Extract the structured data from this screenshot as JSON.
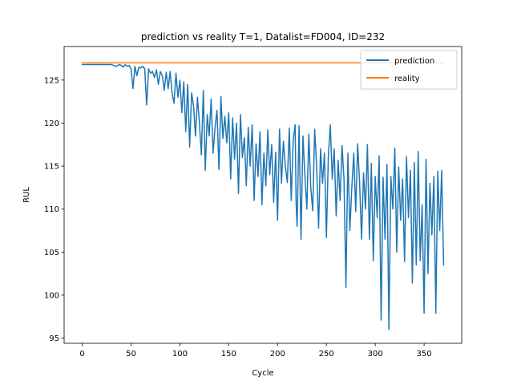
{
  "chart_data": {
    "type": "line",
    "title": "prediction vs reality T=1, Datalist=FD004, ID=232",
    "xlabel": "Cycle",
    "ylabel": "RUL",
    "xlim": [
      -18.5,
      388.5
    ],
    "ylim": [
      94.4,
      128.9
    ],
    "x_ticks": [
      0,
      50,
      100,
      150,
      200,
      250,
      300,
      350
    ],
    "y_ticks": [
      95,
      100,
      105,
      110,
      115,
      120,
      125
    ],
    "grid": false,
    "legend_position": "top-right",
    "series": [
      {
        "name": "prediction",
        "color": "#1f77b4",
        "x": [
          0,
          5,
          10,
          15,
          20,
          25,
          30,
          35,
          38,
          40,
          42,
          44,
          46,
          48,
          50,
          52,
          54,
          56,
          58,
          60,
          62,
          64,
          66,
          68,
          70,
          72,
          74,
          76,
          78,
          80,
          82,
          84,
          86,
          88,
          90,
          92,
          94,
          96,
          98,
          100,
          102,
          104,
          106,
          108,
          110,
          112,
          114,
          116,
          118,
          120,
          122,
          124,
          126,
          128,
          130,
          132,
          134,
          136,
          138,
          140,
          142,
          144,
          146,
          148,
          150,
          152,
          154,
          156,
          158,
          160,
          162,
          164,
          166,
          168,
          170,
          172,
          174,
          176,
          178,
          180,
          182,
          184,
          186,
          188,
          190,
          192,
          194,
          196,
          198,
          200,
          202,
          204,
          206,
          208,
          210,
          212,
          214,
          216,
          218,
          219,
          220,
          222,
          224,
          226,
          228,
          230,
          232,
          234,
          236,
          238,
          240,
          242,
          244,
          246,
          248,
          250,
          252,
          254,
          256,
          258,
          260,
          262,
          264,
          266,
          268,
          270,
          272,
          274,
          276,
          278,
          280,
          282,
          284,
          286,
          288,
          290,
          292,
          294,
          296,
          298,
          300,
          302,
          304,
          306,
          308,
          310,
          312,
          314,
          316,
          318,
          320,
          322,
          324,
          326,
          328,
          330,
          332,
          334,
          336,
          338,
          340,
          342,
          344,
          346,
          348,
          350,
          352,
          354,
          356,
          358,
          360,
          362,
          364,
          366,
          368,
          370
        ],
        "values": [
          126.8,
          126.8,
          126.8,
          126.8,
          126.8,
          126.8,
          126.8,
          126.6,
          126.8,
          126.7,
          126.5,
          126.8,
          126.6,
          126.7,
          126.3,
          124.0,
          126.6,
          125.5,
          126.5,
          126.4,
          126.6,
          126.3,
          122.1,
          126.3,
          125.8,
          126.0,
          125.3,
          126.2,
          124.5,
          126.0,
          125.5,
          123.8,
          125.9,
          124.0,
          126.0,
          123.5,
          122.3,
          125.8,
          123.0,
          125.0,
          121.2,
          124.8,
          119.0,
          124.5,
          117.2,
          123.5,
          122.0,
          118.5,
          123.0,
          120.0,
          116.3,
          123.8,
          114.5,
          121.0,
          118.5,
          122.8,
          116.5,
          119.5,
          121.5,
          114.6,
          123.1,
          118.2,
          120.8,
          117.7,
          121.2,
          113.5,
          120.6,
          115.8,
          120.0,
          111.8,
          121.0,
          116.0,
          118.3,
          112.7,
          119.5,
          115.0,
          119.8,
          111.0,
          117.6,
          113.8,
          119.0,
          110.5,
          116.5,
          112.7,
          119.2,
          114.0,
          117.5,
          110.8,
          116.6,
          108.7,
          119.3,
          113.0,
          117.9,
          115.0,
          113.1,
          119.4,
          111.0,
          118.0,
          119.8,
          110.6,
          108.0,
          119.7,
          106.5,
          118.5,
          113.8,
          110.0,
          118.7,
          112.5,
          109.8,
          119.3,
          115.0,
          107.8,
          117.0,
          113.0,
          116.5,
          106.7,
          116.2,
          119.8,
          113.5,
          117.0,
          109.2,
          115.7,
          111.0,
          117.4,
          113.5,
          100.9,
          116.5,
          107.5,
          112.5,
          116.5,
          109.7,
          117.6,
          113.0,
          106.5,
          114.2,
          110.0,
          117.5,
          106.5,
          115.3,
          104.0,
          113.8,
          109.0,
          116.2,
          97.1,
          113.7,
          106.5,
          115.2,
          96.0,
          113.8,
          110.0,
          117.1,
          105.0,
          114.9,
          108.7,
          113.5,
          103.9,
          116.1,
          109.0,
          114.5,
          101.4,
          115.4,
          103.5,
          116.7,
          104.0,
          110.5,
          97.9,
          115.8,
          102.5,
          113.0,
          107.0,
          113.8,
          97.9,
          114.4,
          107.5,
          114.5,
          103.5
        ]
      },
      {
        "name": "reality",
        "color": "#ff7f0e",
        "x": [
          0,
          370
        ],
        "values": [
          127.0,
          127.0
        ]
      }
    ]
  }
}
